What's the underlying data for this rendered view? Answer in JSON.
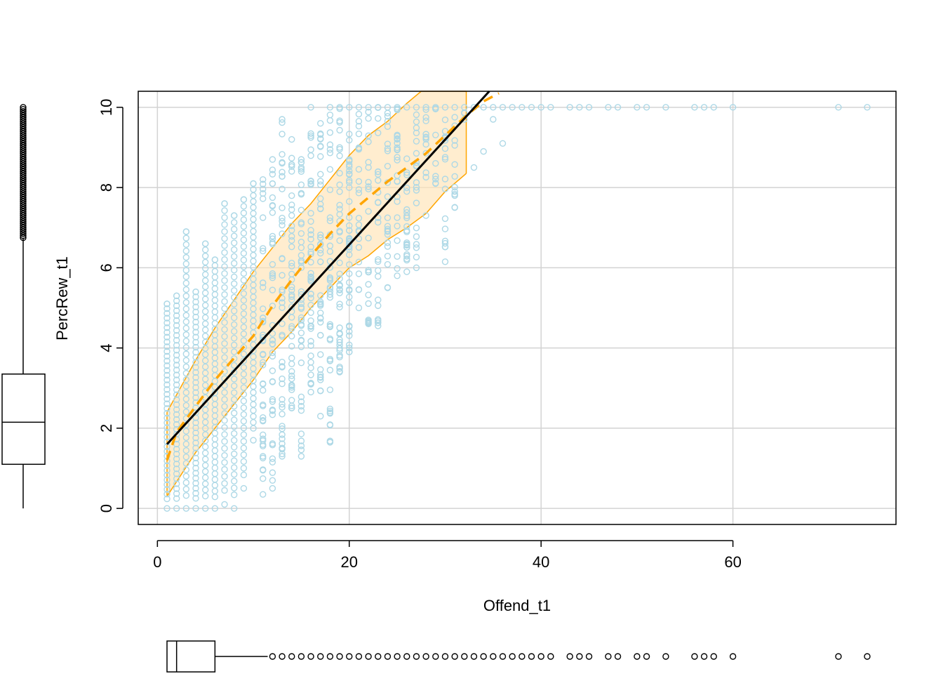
{
  "chart_data": {
    "type": "scatter",
    "title": "",
    "xlabel": "Offend_t1",
    "ylabel": "PercRew_t1",
    "xlim": [
      -2,
      77
    ],
    "ylim": [
      -0.4,
      10.4
    ],
    "x_ticks": [
      0,
      20,
      40,
      60
    ],
    "x_tick_labels": [
      "0",
      "20",
      "40",
      "60"
    ],
    "y_ticks": [
      0,
      2,
      4,
      6,
      8,
      10
    ],
    "y_tick_labels": [
      "0",
      "2",
      "4",
      "6",
      "8",
      "10"
    ],
    "grid": true,
    "colors": {
      "points": "#add8e6",
      "fit_line": "#000000",
      "smooth_line": "#ffa500",
      "band_fill": "#ffe4b5",
      "band_edge": "#ffa500"
    },
    "series": [
      {
        "name": "observations",
        "kind": "points",
        "columns": [
          {
            "x": 1,
            "y_min": 0.0,
            "y_max": 5.1
          },
          {
            "x": 2,
            "y_min": 0.0,
            "y_max": 5.3
          },
          {
            "x": 3,
            "y_min": 0.0,
            "y_max": 6.9
          },
          {
            "x": 4,
            "y_min": 0.0,
            "y_max": 5.4
          },
          {
            "x": 5,
            "y_min": 0.0,
            "y_max": 6.6
          },
          {
            "x": 6,
            "y_min": 0.0,
            "y_max": 6.2
          },
          {
            "x": 7,
            "y_min": 0.1,
            "y_max": 7.6
          },
          {
            "x": 8,
            "y_min": 0.0,
            "y_max": 7.3
          },
          {
            "x": 9,
            "y_min": 0.5,
            "y_max": 7.7
          },
          {
            "x": 10,
            "y_min": 1.7,
            "y_max": 8.1
          },
          {
            "x": 11,
            "y_min": 0.35,
            "y_max": 8.2
          },
          {
            "x": 12,
            "y_min": 0.5,
            "y_max": 8.7
          },
          {
            "x": 13,
            "y_min": 1.3,
            "y_max": 9.7
          },
          {
            "x": 14,
            "y_min": 2.5,
            "y_max": 9.2
          },
          {
            "x": 15,
            "y_min": 1.3,
            "y_max": 8.7
          },
          {
            "x": 16,
            "y_min": 2.9,
            "y_max": 10.0
          },
          {
            "x": 17,
            "y_min": 2.3,
            "y_max": 9.6
          },
          {
            "x": 18,
            "y_min": 1.65,
            "y_max": 10.0
          },
          {
            "x": 19,
            "y_min": 3.4,
            "y_max": 10.0
          },
          {
            "x": 20,
            "y_min": 3.9,
            "y_max": 10.0
          },
          {
            "x": 21,
            "y_min": 5.0,
            "y_max": 10.0
          },
          {
            "x": 22,
            "y_min": 4.6,
            "y_max": 10.0
          },
          {
            "x": 23,
            "y_min": 4.55,
            "y_max": 10.0
          },
          {
            "x": 24,
            "y_min": 5.5,
            "y_max": 10.0
          },
          {
            "x": 25,
            "y_min": 5.8,
            "y_max": 10.0
          },
          {
            "x": 26,
            "y_min": 5.9,
            "y_max": 10.0
          },
          {
            "x": 27,
            "y_min": 6.0,
            "y_max": 10.0
          },
          {
            "x": 28,
            "y_min": 7.3,
            "y_max": 10.0
          },
          {
            "x": 29,
            "y_min": 8.1,
            "y_max": 10.0
          },
          {
            "x": 30,
            "y_min": 6.15,
            "y_max": 10.0
          },
          {
            "x": 31,
            "y_min": 7.5,
            "y_max": 10.0
          },
          {
            "x": 32,
            "y_min": 9.7,
            "y_max": 10.0
          }
        ],
        "extra_points": [
          [
            33,
            8.5
          ],
          [
            33,
            10.0
          ],
          [
            34,
            8.9
          ],
          [
            34,
            10.0
          ],
          [
            35,
            10.0
          ],
          [
            35,
            9.7
          ],
          [
            36,
            9.1
          ],
          [
            36,
            10.0
          ],
          [
            37,
            10.0
          ],
          [
            38,
            10.0
          ],
          [
            39,
            10.0
          ],
          [
            40,
            10.0
          ],
          [
            41,
            10.0
          ],
          [
            43,
            10.0
          ],
          [
            44,
            10.0
          ],
          [
            45,
            10.0
          ],
          [
            47,
            10.0
          ],
          [
            48,
            10.0
          ],
          [
            50,
            10.0
          ],
          [
            51,
            10.0
          ],
          [
            53,
            10.0
          ],
          [
            56,
            10.0
          ],
          [
            57,
            10.0
          ],
          [
            58,
            10.0
          ],
          [
            60,
            10.0
          ],
          [
            71,
            10.0
          ],
          [
            74,
            10.0
          ]
        ]
      },
      {
        "name": "linear fit",
        "kind": "line",
        "x": [
          1,
          34.6
        ],
        "y": [
          1.6,
          10.4
        ]
      },
      {
        "name": "smoother",
        "kind": "dashed-line",
        "x": [
          1,
          2,
          4,
          6,
          8,
          10,
          12,
          14,
          16,
          18,
          20,
          22,
          24,
          26,
          28,
          30,
          32,
          34,
          35.6
        ],
        "y": [
          1.2,
          1.9,
          2.55,
          3.2,
          3.75,
          4.3,
          5.05,
          5.7,
          6.3,
          6.85,
          7.35,
          7.75,
          8.15,
          8.5,
          8.85,
          9.3,
          9.75,
          10.15,
          10.35
        ]
      },
      {
        "name": "smoother band upper",
        "kind": "band-upper",
        "x": [
          1,
          4,
          6,
          8,
          10,
          12,
          14,
          16,
          18,
          20,
          22,
          24,
          26,
          27.5,
          32.2
        ],
        "y": [
          2.4,
          3.7,
          4.5,
          5.2,
          5.9,
          6.5,
          7.1,
          7.6,
          8.2,
          8.8,
          9.3,
          9.65,
          10.1,
          10.4,
          10.4
        ]
      },
      {
        "name": "smoother band lower",
        "kind": "band-lower",
        "x": [
          1,
          4,
          6,
          8,
          10,
          12,
          14,
          16,
          18,
          20,
          22,
          24,
          26,
          28,
          30,
          32.2
        ],
        "y": [
          0.3,
          1.4,
          2.0,
          2.6,
          3.2,
          3.9,
          4.4,
          5.0,
          5.5,
          6.0,
          6.3,
          6.7,
          7.0,
          7.35,
          7.9,
          8.35
        ]
      }
    ],
    "marginal_boxplots": {
      "y": {
        "orientation": "vertical",
        "side": "left",
        "q1": 1.1,
        "median": 2.15,
        "q3": 3.35,
        "whisker_low": 0.0,
        "whisker_high": 6.75,
        "outliers_range": [
          6.75,
          10.0
        ]
      },
      "x": {
        "orientation": "horizontal",
        "side": "bottom",
        "q1": 1,
        "median": 2,
        "q3": 6,
        "whisker_low": 1,
        "whisker_high": 11.5,
        "outliers": [
          12,
          13,
          14,
          15,
          16,
          17,
          18,
          19,
          20,
          21,
          22,
          23,
          24,
          25,
          26,
          27,
          28,
          29,
          30,
          31,
          32,
          33,
          34,
          35,
          36,
          37,
          38,
          39,
          40,
          41,
          43,
          44,
          45,
          47,
          48,
          50,
          51,
          53,
          56,
          57,
          58,
          60,
          71,
          74
        ]
      }
    }
  }
}
